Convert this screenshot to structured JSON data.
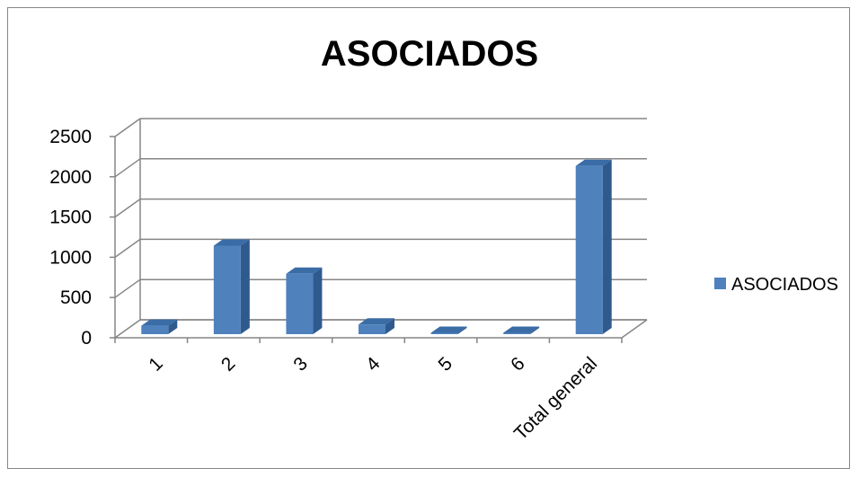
{
  "chart_data": {
    "type": "bar",
    "title": "ASOCIADOS",
    "categories": [
      "1",
      "2",
      "3",
      "4",
      "5",
      "6",
      "Total general"
    ],
    "series": [
      {
        "name": "ASOCIADOS",
        "values": [
          105,
          1100,
          750,
          120,
          10,
          5,
          2090
        ],
        "color": "#4F81BD"
      }
    ],
    "yticks": [
      0,
      500,
      1000,
      1500,
      2000,
      2500
    ],
    "ylim": [
      0,
      2500
    ],
    "grid": true,
    "legend": "right",
    "view": "3d-column"
  }
}
